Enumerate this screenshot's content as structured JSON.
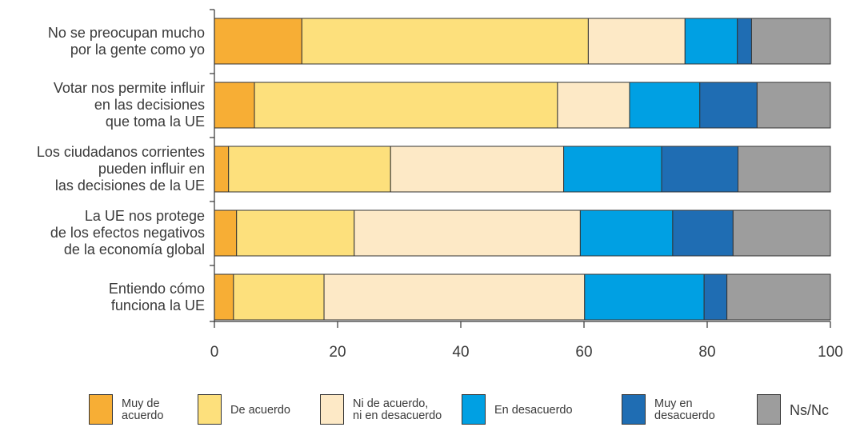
{
  "chart_data": {
    "type": "bar",
    "orientation": "horizontal",
    "stacked": true,
    "categories": [
      "No se preocupan mucho\npor la gente como yo",
      "Votar nos permite influir\nen las decisiones\nque toma la UE",
      "Los ciudadanos corrientes\npueden influir en\nlas decisiones de la UE",
      "La UE nos protege\nde los efectos negativos\nde la economía global",
      "Entiendo cómo\nfunciona la UE"
    ],
    "series": [
      {
        "name": "Muy de\nacuerdo",
        "color": "#f7ae35",
        "values": [
          14.2,
          6.5,
          2.3,
          3.6,
          3.1
        ]
      },
      {
        "name": "De acuerdo",
        "color": "#fde07c",
        "values": [
          46.5,
          49.2,
          26.3,
          19.1,
          14.7
        ]
      },
      {
        "name": "Ni de acuerdo,\nni en desacuerdo",
        "color": "#fde9c6",
        "values": [
          15.7,
          11.7,
          28.1,
          36.7,
          42.3
        ]
      },
      {
        "name": "En desacuerdo",
        "color": "#00a0e3",
        "values": [
          8.5,
          11.4,
          15.9,
          15.0,
          19.4
        ]
      },
      {
        "name": "Muy en\ndesacuerdo",
        "color": "#1f6db3",
        "values": [
          2.3,
          9.3,
          12.4,
          9.8,
          3.7
        ]
      },
      {
        "name": "Ns/Nc",
        "color": "#9d9d9d",
        "values": [
          12.8,
          11.9,
          15.0,
          15.8,
          16.8
        ]
      }
    ],
    "xticks": [
      "0",
      "20",
      "40",
      "60",
      "80",
      "100"
    ],
    "xlim": [
      0,
      100
    ],
    "grid": false,
    "legend_position": "bottom"
  }
}
